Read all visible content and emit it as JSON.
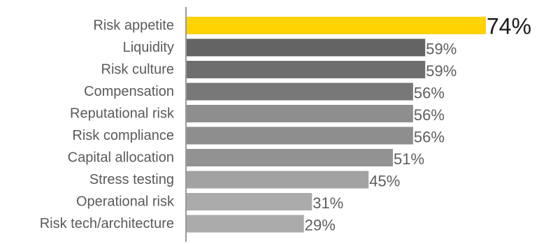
{
  "chart_data": {
    "type": "bar",
    "orientation": "horizontal",
    "categories": [
      "Risk appetite",
      "Liquidity",
      "Risk culture",
      "Compensation",
      "Reputational risk",
      "Risk compliance",
      "Capital allocation",
      "Stress testing",
      "Operational risk",
      "Risk tech/architecture"
    ],
    "values": [
      74,
      59,
      59,
      56,
      56,
      56,
      51,
      45,
      31,
      29
    ],
    "value_labels": [
      "74%",
      "59%",
      "59%",
      "56%",
      "56%",
      "56%",
      "51%",
      "45%",
      "31%",
      "29%"
    ],
    "bar_colors": [
      "#ffd200",
      "#646464",
      "#6e6e6e",
      "#787878",
      "#8e8e8e",
      "#8e8e8e",
      "#929292",
      "#a2a2a2",
      "#ababab",
      "#ababab"
    ],
    "highlight_index": 0,
    "xlim": [
      0,
      74
    ],
    "grid": false,
    "legend": "none"
  }
}
